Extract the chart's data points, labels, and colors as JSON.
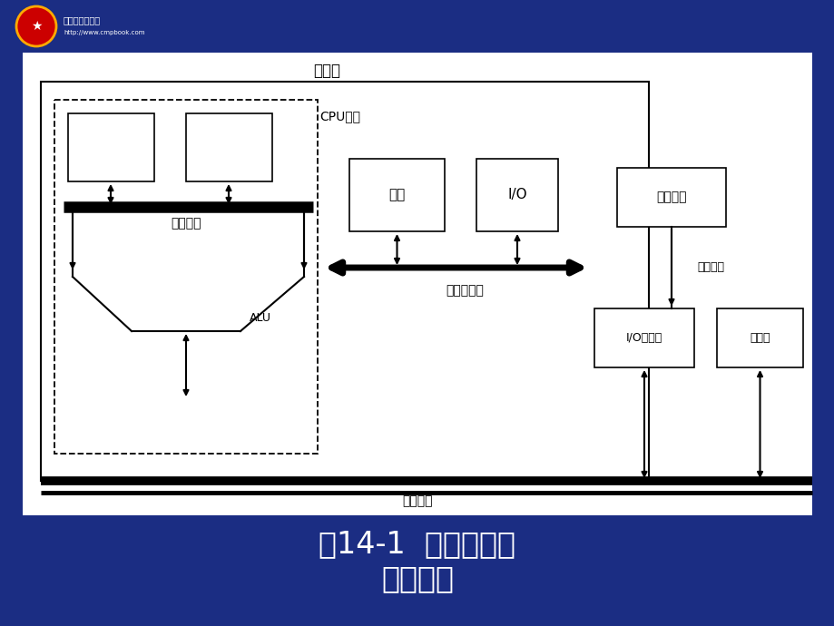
{
  "bg_color": "#1b2d83",
  "slide_bg": "#ffffff",
  "title_line1": "图14-1  微机各级总",
  "title_line2": "线示意图",
  "title_color": "#ffffff",
  "title_fontsize": 24,
  "labels": {
    "mainboard": "主机板",
    "cpu_chip": "CPU芯片",
    "inner_bus": "片内总线",
    "alu": "ALU",
    "memory": "内存",
    "io": "I/O",
    "component_bus": "元件级总线",
    "external_device": "外部设备",
    "comm_bus": "通信总线",
    "io_board": "I/O接口板",
    "storage_board": "存储板",
    "system_bus": "系统总线"
  }
}
